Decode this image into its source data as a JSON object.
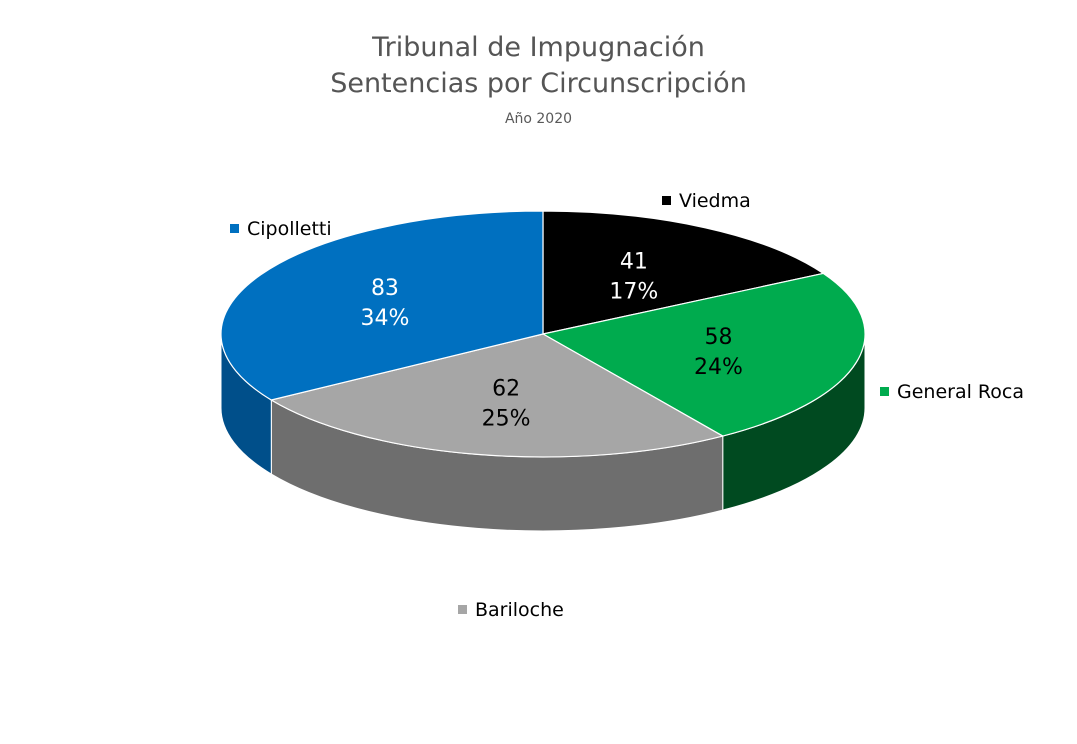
{
  "chart_data": {
    "type": "pie",
    "title": "Tribunal de Impugnación",
    "subtitle": "Sentencias por Circunscripción",
    "caption": "Año 2020",
    "slices": [
      {
        "label": "Viedma",
        "value": 41,
        "percent": "17%",
        "color": "#000000",
        "side_color": "#000000",
        "text_color": "#ffffff"
      },
      {
        "label": "General Roca",
        "value": 58,
        "percent": "24%",
        "color": "#00AB4E",
        "side_color": "#004A20",
        "text_color": "#000000"
      },
      {
        "label": "Bariloche",
        "value": 62,
        "percent": "25%",
        "color": "#A6A6A6",
        "side_color": "#6E6E6E",
        "text_color": "#000000"
      },
      {
        "label": "Cipolletti",
        "value": 83,
        "percent": "34%",
        "color": "#0070C0",
        "side_color": "#004F8A",
        "text_color": "#ffffff"
      }
    ],
    "legend_placement": "around"
  }
}
